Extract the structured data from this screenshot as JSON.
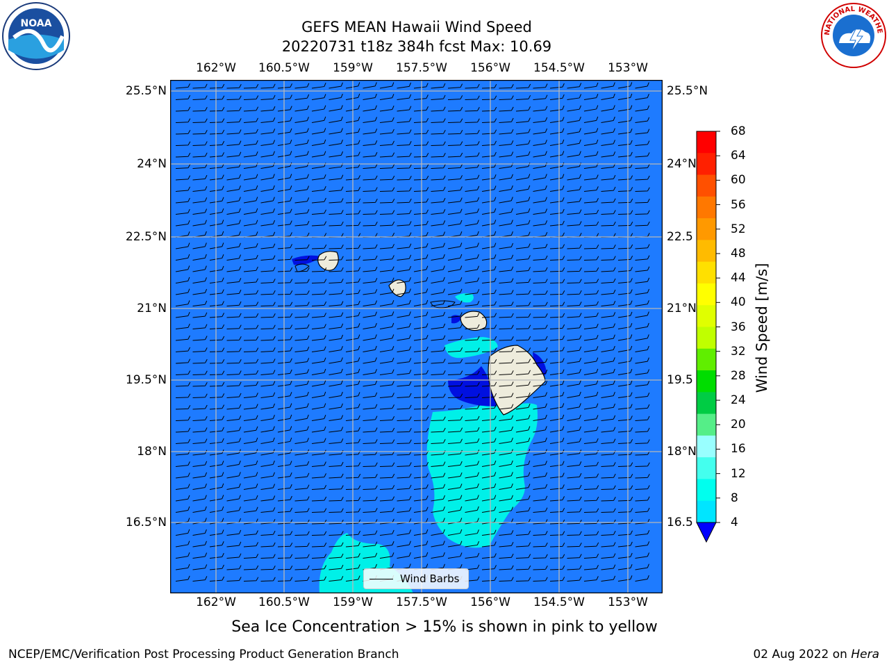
{
  "title": {
    "line1": "GEFS MEAN Hawaii Wind Speed",
    "line2": "20220731 t18z 384h fcst   Max: 10.69"
  },
  "logos": {
    "left": {
      "name": "noaa-logo",
      "text": "NOAA"
    },
    "right": {
      "name": "nws-logo",
      "text": "NATIONAL WEATHER SERVICE"
    }
  },
  "map": {
    "lon_labels": [
      "162°W",
      "160.5°W",
      "159°W",
      "157.5°W",
      "156°W",
      "154.5°W",
      "153°W"
    ],
    "lat_labels": [
      "25.5°N",
      "24°N",
      "22.5°N",
      "21°N",
      "19.5°N",
      "18°N",
      "16.5°N"
    ],
    "right_lat_labels": [
      "25.5°N",
      "24°N",
      "22.5",
      "21°N",
      "19.5",
      "18°N",
      "16.5"
    ],
    "legend_label": "Wind Barbs",
    "background_color": "#1e7bff"
  },
  "colorbar": {
    "label": "Wind Speed [m/s]",
    "ticks": [
      "68",
      "64",
      "60",
      "56",
      "52",
      "48",
      "44",
      "40",
      "36",
      "32",
      "28",
      "24",
      "20",
      "16",
      "12",
      "8",
      "4"
    ],
    "colors": [
      "#ff0000",
      "#ff2000",
      "#ff5000",
      "#ff7800",
      "#ff9900",
      "#ffbb00",
      "#ffe000",
      "#ffff00",
      "#e0ff00",
      "#c0ff00",
      "#60ee00",
      "#00dd00",
      "#00cc44",
      "#55ee88",
      "#99ffff",
      "#44ffee",
      "#00ffee",
      "#00e5ff"
    ],
    "under_color": "#0000ff"
  },
  "note": "Sea Ice Concentration > 15% is shown in pink to yellow",
  "footer": {
    "left": "NCEP/EMC/Verification Post Processing Product Generation Branch",
    "date": "02 Aug 2022 on ",
    "host": "Hera"
  }
}
